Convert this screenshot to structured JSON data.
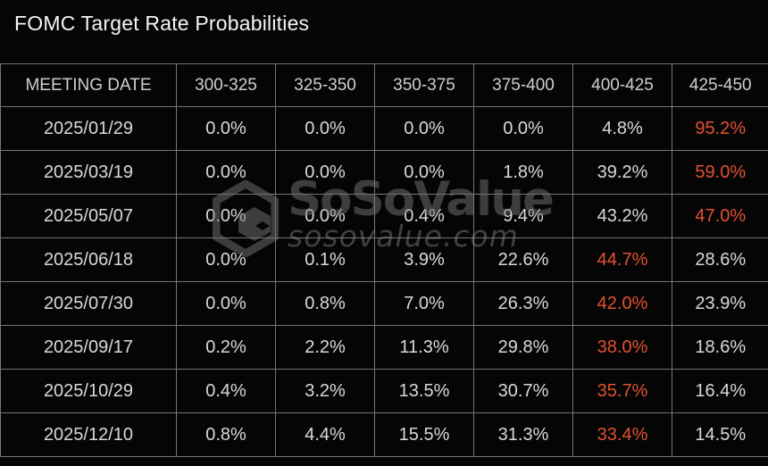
{
  "chart_data": {
    "type": "table",
    "title": "FOMC Target Rate Probabilities",
    "columns": [
      "MEETING DATE",
      "300-325",
      "325-350",
      "350-375",
      "375-400",
      "400-425",
      "425-450"
    ],
    "rows": [
      {
        "meeting_date": "2025/01/29",
        "probabilities": [
          0.0,
          0.0,
          0.0,
          0.0,
          4.8,
          95.2
        ]
      },
      {
        "meeting_date": "2025/03/19",
        "probabilities": [
          0.0,
          0.0,
          0.0,
          1.8,
          39.2,
          59.0
        ]
      },
      {
        "meeting_date": "2025/05/07",
        "probabilities": [
          0.0,
          0.0,
          0.4,
          9.4,
          43.2,
          47.0
        ]
      },
      {
        "meeting_date": "2025/06/18",
        "probabilities": [
          0.0,
          0.1,
          3.9,
          22.6,
          44.7,
          28.6
        ]
      },
      {
        "meeting_date": "2025/07/30",
        "probabilities": [
          0.0,
          0.8,
          7.0,
          26.3,
          42.0,
          23.9
        ]
      },
      {
        "meeting_date": "2025/09/17",
        "probabilities": [
          0.2,
          2.2,
          11.3,
          29.8,
          38.0,
          18.6
        ]
      },
      {
        "meeting_date": "2025/10/29",
        "probabilities": [
          0.4,
          3.2,
          13.5,
          30.7,
          35.7,
          16.4
        ]
      },
      {
        "meeting_date": "2025/12/10",
        "probabilities": [
          0.8,
          4.4,
          15.5,
          31.3,
          33.4,
          14.5
        ]
      }
    ],
    "value_format": "percent_one_decimal",
    "highlight_rule": "max value in each row shown in orange",
    "layout": {
      "grid": true,
      "legend": "none"
    }
  },
  "colors": {
    "background": "#050505",
    "grid_border": "#757575",
    "text_primary": "#d9d9d9",
    "highlight_orange": "#e4512f",
    "title_text": "#f5f5f5"
  },
  "watermark": {
    "brand": "SoSoValue",
    "domain_text": "sosovalue.com",
    "logo_icon": "sosovalue-cube-icon"
  }
}
